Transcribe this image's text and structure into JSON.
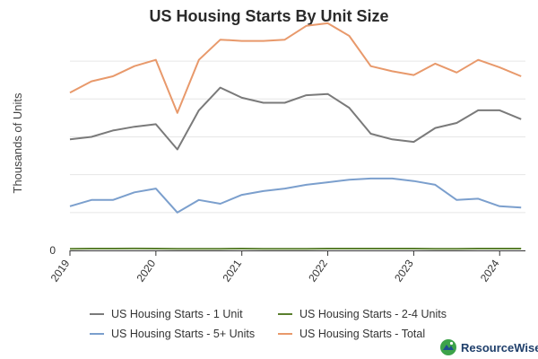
{
  "chart_data": {
    "type": "line",
    "title": "US Housing Starts By Unit Size",
    "xlabel": "",
    "ylabel": "Thousands of Units",
    "x": [
      2019.0,
      2019.25,
      2019.5,
      2019.75,
      2020.0,
      2020.25,
      2020.5,
      2020.75,
      2021.0,
      2021.25,
      2021.5,
      2021.75,
      2022.0,
      2022.25,
      2022.5,
      2022.75,
      2023.0,
      2023.25,
      2023.5,
      2023.75,
      2024.0,
      2024.25
    ],
    "xlim": [
      2019.0,
      2024.3
    ],
    "xticks": [
      2019,
      2020,
      2021,
      2022,
      2023,
      2024
    ],
    "xtick_labels": [
      "2019",
      "2020",
      "2021",
      "2022",
      "2023",
      "2024"
    ],
    "ylim": [
      0,
      1700
    ],
    "yticks": [
      0
    ],
    "ytick_labels": [
      "0"
    ],
    "gridlines": [
      300,
      600,
      900,
      1200,
      1500
    ],
    "series": [
      {
        "name": "US Housing Starts - 1 Unit",
        "color": "#7a7a7a",
        "values": [
          880,
          900,
          950,
          980,
          1000,
          800,
          1110,
          1290,
          1210,
          1170,
          1170,
          1230,
          1240,
          1130,
          925,
          880,
          860,
          970,
          1010,
          1110,
          1110,
          1040
        ]
      },
      {
        "name": "US Housing Starts - 2-4 Units",
        "color": "#5a7f2e",
        "values": [
          13,
          14,
          14,
          15,
          14,
          12,
          13,
          13,
          14,
          13,
          13,
          13,
          14,
          14,
          14,
          14,
          14,
          13,
          13,
          14,
          14,
          14
        ]
      },
      {
        "name": "US Housing Starts - 5+ Units",
        "color": "#7b9fcd",
        "values": [
          350,
          400,
          400,
          460,
          490,
          300,
          400,
          370,
          440,
          470,
          490,
          520,
          540,
          560,
          570,
          570,
          550,
          520,
          400,
          410,
          350,
          340
        ]
      },
      {
        "name": "US Housing Starts - Total",
        "color": "#e8996b",
        "values": [
          1250,
          1340,
          1380,
          1460,
          1510,
          1090,
          1510,
          1670,
          1660,
          1660,
          1670,
          1780,
          1800,
          1700,
          1460,
          1420,
          1390,
          1480,
          1410,
          1510,
          1450,
          1380
        ]
      }
    ]
  },
  "brand": {
    "name": "ResourceWise"
  },
  "colors": {
    "grid": "#e6e6e6",
    "axis": "#333333",
    "brand_green": "#3da34a",
    "brand_blue": "#1f4f8f"
  }
}
